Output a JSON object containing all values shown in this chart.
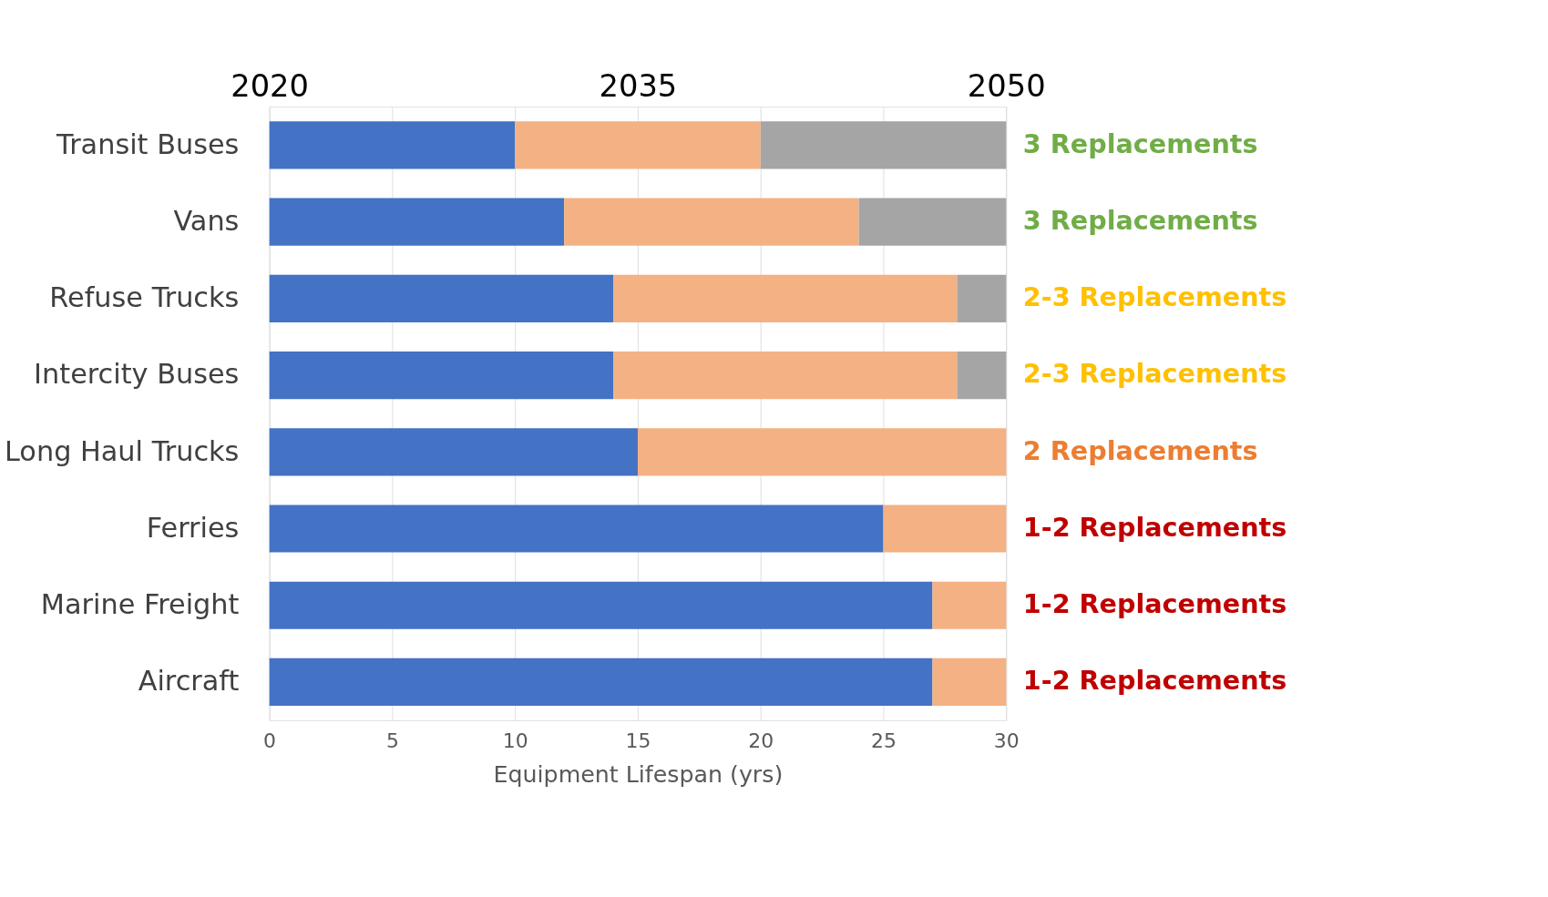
{
  "chart_data": {
    "type": "bar",
    "orientation": "horizontal",
    "stacked": true,
    "xlabel": "Equipment Lifespan (yrs)",
    "categories": [
      "Transit Buses",
      "Vans",
      "Refuse Trucks",
      "Intercity Buses",
      "Long Haul Trucks",
      "Ferries",
      "Marine Freight",
      "Aircraft"
    ],
    "series": [
      {
        "color": "#4472c4",
        "values": [
          10,
          12,
          14,
          14,
          15,
          25,
          27,
          27
        ]
      },
      {
        "color": "#f4b183",
        "values": [
          10,
          12,
          14,
          14,
          15,
          5,
          3,
          3
        ]
      },
      {
        "color": "#a5a5a5",
        "values": [
          10,
          6,
          2,
          2,
          null,
          null,
          null,
          null
        ]
      }
    ],
    "xlim": [
      0,
      30
    ],
    "xticks": [
      0,
      5,
      10,
      15,
      20,
      25,
      30
    ],
    "x2lim": [
      2020,
      2050
    ],
    "x2ticks": [
      2020,
      2035,
      2050
    ],
    "grid": "x",
    "annotations": [
      "3 Replacements",
      "3 Replacements",
      "2-3 Replacements",
      "2-3 Replacements",
      "2 Replacements",
      "1-2 Replacements",
      "1-2 Replacements",
      "1-2 Replacements"
    ]
  }
}
